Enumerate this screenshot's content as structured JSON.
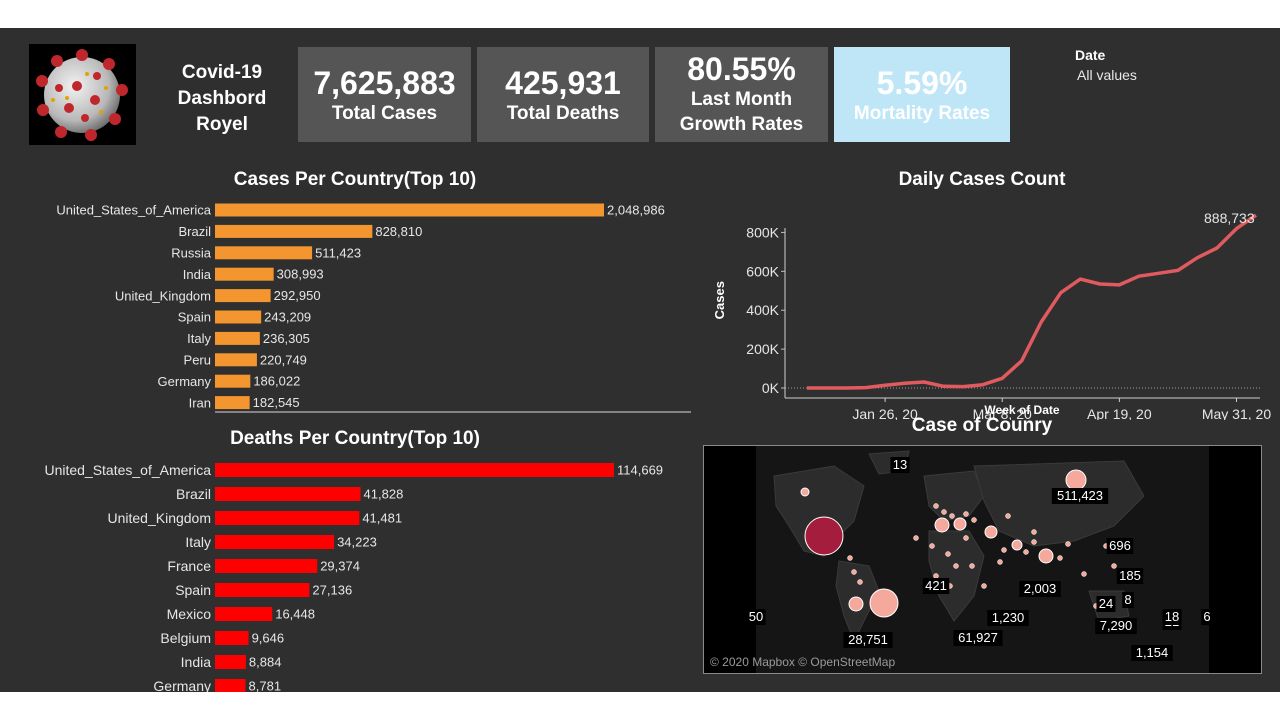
{
  "header": {
    "title": "Covid-19\nDashbord\nRoyel",
    "kpis": [
      {
        "value": "7,625,883",
        "label": "Total Cases"
      },
      {
        "value": "425,931",
        "label": "Total Deaths"
      },
      {
        "value": "80.55%",
        "label": "Last Month\nGrowth Rates"
      },
      {
        "value": "5.59%",
        "label": "Mortality Rates"
      }
    ],
    "filter": {
      "title": "Date",
      "value": "All values"
    }
  },
  "colors": {
    "background": "#2f2f2f",
    "kpi_tile": "#555555",
    "kpi_highlight": "#bfe6f7",
    "cases_bar": "#f3962f",
    "deaths_bar": "#ff0000",
    "line": "#e05a5f",
    "bubble_small": "#f4a99c",
    "bubble_large": "#a51d3d"
  },
  "chart_data": [
    {
      "type": "bar",
      "orientation": "horizontal",
      "title": "Cases Per Country(Top 10)",
      "categories": [
        "United_States_of_America",
        "Brazil",
        "Russia",
        "India",
        "United_Kingdom",
        "Spain",
        "Italy",
        "Peru",
        "Germany",
        "Iran"
      ],
      "values": [
        2048986,
        828810,
        511423,
        308993,
        292950,
        243209,
        236305,
        220749,
        186022,
        182545
      ],
      "value_labels": [
        "2,048,986",
        "828,810",
        "511,423",
        "308,993",
        "292,950",
        "243,209",
        "236,305",
        "220,749",
        "186,022",
        "182,545"
      ]
    },
    {
      "type": "bar",
      "orientation": "horizontal",
      "title": "Deaths Per Country(Top 10)",
      "categories": [
        "United_States_of_America",
        "Brazil",
        "United_Kingdom",
        "Italy",
        "France",
        "Spain",
        "Mexico",
        "Belgium",
        "India",
        "Germany"
      ],
      "values": [
        114669,
        41828,
        41481,
        34223,
        29374,
        27136,
        16448,
        9646,
        8884,
        8781
      ],
      "value_labels": [
        "114,669",
        "41,828",
        "41,481",
        "34,223",
        "29,374",
        "27,136",
        "16,448",
        "9,646",
        "8,884",
        "8,781"
      ]
    },
    {
      "type": "line",
      "title": "Daily Cases Count",
      "xlabel": "Week of Date",
      "ylabel": "Cases",
      "x_ticks": [
        "Jan 26, 20",
        "Mar 8, 20",
        "Apr 19, 20",
        "May 31, 20"
      ],
      "y_ticks": [
        "0K",
        "200K",
        "400K",
        "600K",
        "800K"
      ],
      "ylim": [
        0,
        900000
      ],
      "x": [
        "2019-12-29",
        "2020-01-05",
        "2020-01-12",
        "2020-01-19",
        "2020-01-26",
        "2020-02-02",
        "2020-02-09",
        "2020-02-16",
        "2020-02-23",
        "2020-03-01",
        "2020-03-08",
        "2020-03-15",
        "2020-03-22",
        "2020-03-29",
        "2020-04-05",
        "2020-04-12",
        "2020-04-19",
        "2020-04-26",
        "2020-05-03",
        "2020-05-10",
        "2020-05-17",
        "2020-05-24",
        "2020-05-31",
        "2020-06-07"
      ],
      "values": [
        0,
        0,
        200,
        2000,
        14000,
        24000,
        31000,
        9000,
        7000,
        17000,
        50000,
        140000,
        340000,
        490000,
        560000,
        535000,
        530000,
        575000,
        590000,
        605000,
        670000,
        720000,
        820000,
        888733
      ],
      "end_label": "888,733"
    }
  ],
  "map": {
    "title": "Case of Counry",
    "credit": "© 2020 Mapbox © OpenStreetMap",
    "labels": [
      "13",
      "511,423",
      "696",
      "185",
      "421",
      "2,003",
      "24",
      "8",
      "7,290",
      "21",
      "18",
      "1,230",
      "61,927",
      "28,751",
      "1,154",
      "50",
      "6"
    ]
  }
}
